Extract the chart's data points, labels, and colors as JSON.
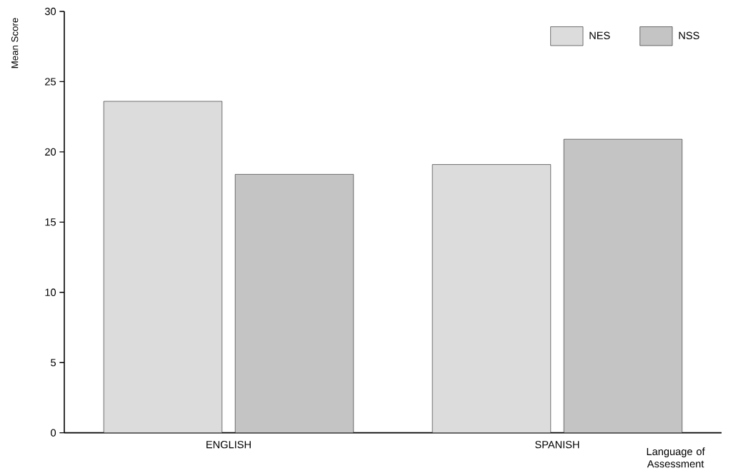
{
  "chart_data": {
    "type": "bar",
    "categories": [
      "ENGLISH",
      "SPANISH"
    ],
    "xlabel": "Language of Assessment",
    "ylabel": "Mean Score",
    "ylim": [
      0,
      30
    ],
    "yticks": [
      0,
      5,
      10,
      15,
      20,
      25,
      30
    ],
    "legend": "top right",
    "grid": false,
    "series": [
      {
        "name": "NES",
        "color": "#dcdcdc",
        "values": [
          23.6,
          19.1
        ]
      },
      {
        "name": "NSS",
        "color": "#c4c4c4",
        "values": [
          18.4,
          20.9
        ]
      }
    ]
  }
}
